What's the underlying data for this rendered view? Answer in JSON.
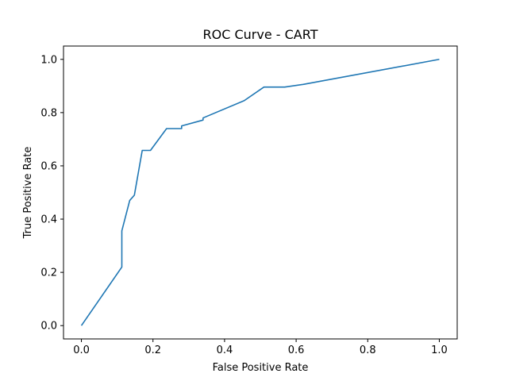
{
  "chart_data": {
    "type": "line",
    "title": "ROC Curve - CART",
    "xlabel": "False Positive Rate",
    "ylabel": "True Positive Rate",
    "xlim": [
      -0.05,
      1.05
    ],
    "ylim": [
      -0.05,
      1.05
    ],
    "xticks": [
      "0.0",
      "0.2",
      "0.4",
      "0.6",
      "0.8",
      "1.0"
    ],
    "yticks": [
      "0.0",
      "0.2",
      "0.4",
      "0.6",
      "0.8",
      "1.0"
    ],
    "grid": false,
    "legend": "none",
    "series": [
      {
        "color": "#1f77b4",
        "x": [
          0.0,
          0.113,
          0.113,
          0.135,
          0.148,
          0.17,
          0.193,
          0.238,
          0.28,
          0.28,
          0.34,
          0.34,
          0.455,
          0.51,
          0.568,
          0.62,
          1.0
        ],
        "y": [
          0.0,
          0.22,
          0.356,
          0.47,
          0.49,
          0.658,
          0.658,
          0.74,
          0.74,
          0.75,
          0.772,
          0.78,
          0.845,
          0.896,
          0.896,
          0.906,
          1.0
        ]
      }
    ]
  }
}
